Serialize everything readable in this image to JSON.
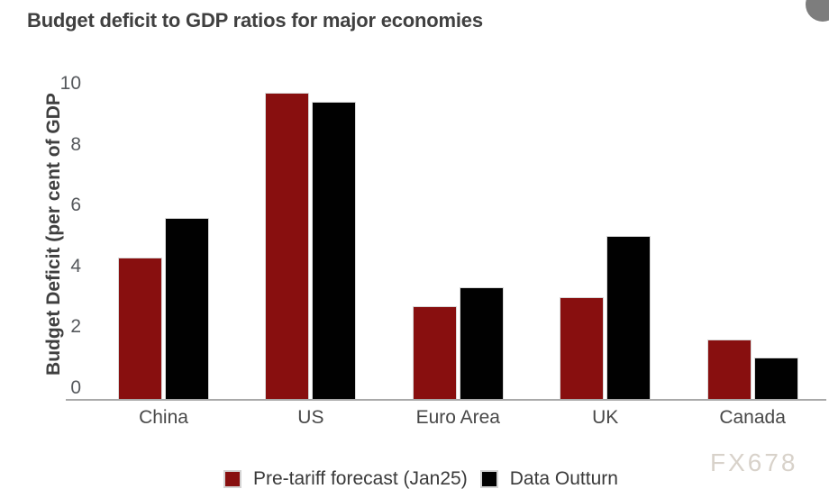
{
  "title": "Budget deficit to GDP ratios for major economies",
  "watermark": "FX678",
  "colors": {
    "series_forecast": "#880f0f",
    "series_outturn": "#010101",
    "title_text": "#404040",
    "axis_line": "#a9a9a9",
    "watermark_text": "#d8d2ca"
  },
  "chart_data": {
    "type": "bar",
    "title": "Budget deficit to GDP ratios for major economies",
    "xlabel": "",
    "ylabel": "Budget Deficit (per cent of GDP",
    "categories": [
      "China",
      "US",
      "Euro Area",
      "UK",
      "Canada"
    ],
    "series": [
      {
        "name": "Pre-tariff forecast (Jan25)",
        "color": "#880f0f",
        "values": [
          4.3,
          9.7,
          2.7,
          3.0,
          1.6
        ]
      },
      {
        "name": "Data Outturn",
        "color": "#010101",
        "values": [
          5.6,
          9.4,
          3.3,
          5.0,
          1.0
        ]
      }
    ],
    "yticks": [
      0,
      2,
      4,
      6,
      8,
      10
    ],
    "ylim": [
      0,
      10
    ],
    "grid": false,
    "legend_position": "bottom"
  }
}
